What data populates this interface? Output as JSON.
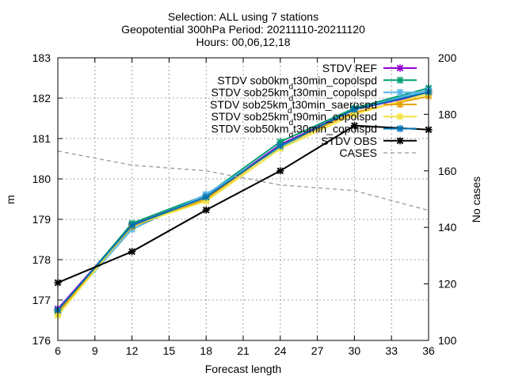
{
  "chart_data": {
    "type": "line",
    "title_lines": [
      "Selection: ALL using     7 stations",
      "Geopotential 300hPa   Period: 20211110-20211120",
      "Hours: 00,06,12,18"
    ],
    "xlabel": "Forecast length",
    "ylabel": "m",
    "y2label": "No cases",
    "x": [
      6,
      12,
      18,
      24,
      30,
      36
    ],
    "xticks": [
      "6",
      "9",
      "12",
      "15",
      "18",
      "21",
      "24",
      "27",
      "30",
      "33",
      "36"
    ],
    "xlim": [
      6,
      36
    ],
    "ylim": [
      176,
      183
    ],
    "yticks": [
      "176",
      "177",
      "178",
      "179",
      "180",
      "181",
      "182",
      "183"
    ],
    "y2lim": [
      100,
      200
    ],
    "y2ticks": [
      "100",
      "120",
      "140",
      "160",
      "180",
      "200"
    ],
    "grid": true,
    "legend_position": "top-right",
    "series": [
      {
        "label_main": "STDV REF",
        "label_sub": "",
        "label_tail": "",
        "color": "#9400d3",
        "axis": "left",
        "marker": "x",
        "values": [
          176.78,
          178.86,
          179.55,
          180.85,
          181.72,
          182.12
        ]
      },
      {
        "label_main": "STDV sob0km",
        "label_sub": "d",
        "label_tail": "t30min_copolspd",
        "color": "#009e73",
        "axis": "left",
        "marker": "x",
        "values": [
          176.72,
          178.9,
          179.6,
          180.92,
          181.75,
          182.25
        ]
      },
      {
        "label_main": "STDV sob25km",
        "label_sub": "d",
        "label_tail": "t30min_copolspd",
        "color": "#56b4e9",
        "axis": "left",
        "marker": "x",
        "values": [
          176.68,
          178.75,
          179.62,
          180.78,
          181.72,
          182.2
        ]
      },
      {
        "label_main": "STDV sob25km",
        "label_sub": "d",
        "label_tail": "t30min_saerospd",
        "color": "#e69f00",
        "axis": "left",
        "marker": "x",
        "values": [
          176.7,
          178.82,
          179.5,
          180.82,
          181.65,
          182.05
        ]
      },
      {
        "label_main": "STDV sob25km",
        "label_sub": "d",
        "label_tail": "t90min_copolspd",
        "color": "#f0e442",
        "axis": "left",
        "marker": "x",
        "values": [
          176.62,
          178.85,
          179.45,
          180.75,
          181.6,
          182.12
        ]
      },
      {
        "label_main": "STDV sob50km",
        "label_sub": "d",
        "label_tail": "t30min_copolspd",
        "color": "#0072b2",
        "axis": "left",
        "marker": "x",
        "values": [
          176.75,
          178.85,
          179.55,
          180.82,
          181.72,
          182.15
        ]
      },
      {
        "label_main": "STDV OBS",
        "label_sub": "",
        "label_tail": "",
        "color": "#000000",
        "axis": "left",
        "marker": "x",
        "values": [
          177.43,
          178.2,
          179.23,
          180.2,
          181.32,
          181.22
        ]
      },
      {
        "label_main": "CASES",
        "label_sub": "",
        "label_tail": "",
        "color": "#a0a0a0",
        "axis": "right",
        "marker": "none",
        "dashed": true,
        "x": [
          6,
          12,
          18,
          24,
          30,
          36
        ],
        "values": [
          167,
          162,
          160,
          155,
          153,
          146
        ]
      }
    ]
  }
}
